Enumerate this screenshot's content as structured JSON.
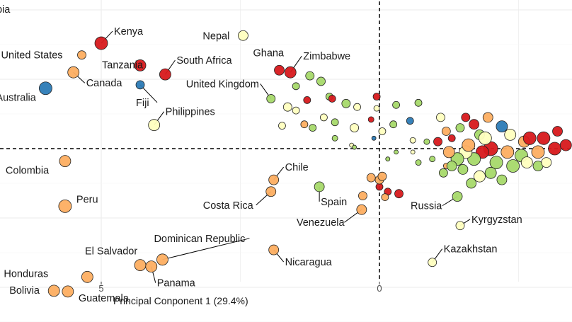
{
  "chart_data": {
    "type": "scatter",
    "xlabel": "Principal Conponent 1 (29.4%)",
    "ylabel": "",
    "x_reversed": true,
    "xlim": [
      6.75,
      -3.5
    ],
    "ylim": [
      -2.55,
      2.7
    ],
    "x_ticks": [
      5,
      0
    ],
    "grid": true,
    "reference_lines": {
      "x": 0,
      "y": 0
    },
    "cropped_label": "bia",
    "colors": {
      "red": "#d7191c",
      "orange": "#fdae61",
      "yellow": "#ffffbf",
      "green": "#a6d96a",
      "blue": "#2c7bb6"
    },
    "labeled_points": [
      {
        "label": "Kenya",
        "x": 5.0,
        "y": 1.52,
        "color": "red",
        "size": 9
      },
      {
        "label": "Tanzania",
        "x": 4.3,
        "y": 1.2,
        "color": "red",
        "size": 8
      },
      {
        "label": "South Africa",
        "x": 3.85,
        "y": 1.07,
        "color": "red",
        "size": 8
      },
      {
        "label": "United States",
        "x": 5.35,
        "y": 1.35,
        "color": "orange",
        "size": 6
      },
      {
        "label": "Canada",
        "x": 5.5,
        "y": 1.1,
        "color": "orange",
        "size": 8
      },
      {
        "label": "Fiji",
        "x": 4.3,
        "y": 0.92,
        "color": "blue",
        "size": 6
      },
      {
        "label": "Australia",
        "x": 6.0,
        "y": 0.87,
        "color": "blue",
        "size": 9
      },
      {
        "label": "Philippines",
        "x": 4.05,
        "y": 0.34,
        "color": "yellow",
        "size": 8
      },
      {
        "label": "Nepal",
        "x": 2.45,
        "y": 1.63,
        "color": "yellow",
        "size": 7
      },
      {
        "label": "Ghana",
        "x": 1.8,
        "y": 1.13,
        "color": "red",
        "size": 7
      },
      {
        "label": "Zimbabwe",
        "x": 1.6,
        "y": 1.1,
        "color": "red",
        "size": 8
      },
      {
        "label": "United Kingdom",
        "x": 1.95,
        "y": 0.72,
        "color": "green",
        "size": 6
      },
      {
        "label": "Colombia",
        "x": 5.65,
        "y": -0.18,
        "color": "orange",
        "size": 8
      },
      {
        "label": "Peru",
        "x": 5.65,
        "y": -0.83,
        "color": "orange",
        "size": 9
      },
      {
        "label": "Chile",
        "x": 1.9,
        "y": -0.45,
        "color": "orange",
        "size": 7
      },
      {
        "label": "Costa Rica",
        "x": 1.95,
        "y": -0.62,
        "color": "orange",
        "size": 7
      },
      {
        "label": "Spain",
        "x": 1.08,
        "y": -0.55,
        "color": "green",
        "size": 7
      },
      {
        "label": "Venezuela",
        "x": 0.32,
        "y": -0.88,
        "color": "orange",
        "size": 7
      },
      {
        "label": "Russia",
        "x": -1.4,
        "y": -0.69,
        "color": "green",
        "size": 7
      },
      {
        "label": "Kyrgyzstan",
        "x": -1.45,
        "y": -1.11,
        "color": "yellow",
        "size": 6
      },
      {
        "label": "Kazakhstan",
        "x": -0.95,
        "y": -1.64,
        "color": "yellow",
        "size": 6
      },
      {
        "label": "Nicaragua",
        "x": 1.9,
        "y": -1.46,
        "color": "orange",
        "size": 7
      },
      {
        "label": "Dominican Republic",
        "x": 3.9,
        "y": -1.6,
        "color": "orange",
        "size": 8
      },
      {
        "label": "El Salvador",
        "x": 4.3,
        "y": -1.68,
        "color": "orange",
        "size": 8
      },
      {
        "label": "Panama",
        "x": 4.1,
        "y": -1.7,
        "color": "orange",
        "size": 8
      },
      {
        "label": "Honduras",
        "x": 5.25,
        "y": -1.85,
        "color": "orange",
        "size": 8
      },
      {
        "label": "Bolivia",
        "x": 5.85,
        "y": -2.05,
        "color": "orange",
        "size": 8
      },
      {
        "label": "Guatemala",
        "x": 5.6,
        "y": -2.06,
        "color": "orange",
        "size": 8
      }
    ],
    "unlabeled_points": [
      {
        "x": 1.25,
        "y": 1.05,
        "color": "green",
        "size": 6
      },
      {
        "x": 1.05,
        "y": 0.97,
        "color": "green",
        "size": 6
      },
      {
        "x": 1.5,
        "y": 0.9,
        "color": "green",
        "size": 5
      },
      {
        "x": 1.3,
        "y": 0.7,
        "color": "red",
        "size": 5
      },
      {
        "x": 0.9,
        "y": 0.75,
        "color": "green",
        "size": 5
      },
      {
        "x": 0.85,
        "y": 0.72,
        "color": "red",
        "size": 5
      },
      {
        "x": 0.6,
        "y": 0.65,
        "color": "green",
        "size": 6
      },
      {
        "x": 0.4,
        "y": 0.6,
        "color": "yellow",
        "size": 5
      },
      {
        "x": 0.05,
        "y": 0.75,
        "color": "red",
        "size": 5
      },
      {
        "x": -0.3,
        "y": 0.63,
        "color": "green",
        "size": 5
      },
      {
        "x": -0.7,
        "y": 0.66,
        "color": "green",
        "size": 5
      },
      {
        "x": 1.65,
        "y": 0.6,
        "color": "yellow",
        "size": 6
      },
      {
        "x": 1.5,
        "y": 0.55,
        "color": "yellow",
        "size": 5
      },
      {
        "x": 1.75,
        "y": 0.33,
        "color": "yellow",
        "size": 5
      },
      {
        "x": 1.35,
        "y": 0.35,
        "color": "orange",
        "size": 5
      },
      {
        "x": 1.2,
        "y": 0.3,
        "color": "green",
        "size": 5
      },
      {
        "x": 1.0,
        "y": 0.45,
        "color": "yellow",
        "size": 5
      },
      {
        "x": 0.8,
        "y": 0.38,
        "color": "green",
        "size": 5
      },
      {
        "x": 0.45,
        "y": 0.3,
        "color": "yellow",
        "size": 6
      },
      {
        "x": 0.15,
        "y": 0.42,
        "color": "red",
        "size": 4
      },
      {
        "x": 0.05,
        "y": 0.58,
        "color": "yellow",
        "size": 4
      },
      {
        "x": -0.05,
        "y": 0.25,
        "color": "yellow",
        "size": 5
      },
      {
        "x": -0.25,
        "y": 0.35,
        "color": "green",
        "size": 5
      },
      {
        "x": -0.55,
        "y": 0.4,
        "color": "blue",
        "size": 5
      },
      {
        "x": 0.8,
        "y": 0.15,
        "color": "green",
        "size": 4
      },
      {
        "x": 0.5,
        "y": 0.05,
        "color": "yellow",
        "size": 3
      },
      {
        "x": 0.1,
        "y": 0.15,
        "color": "blue",
        "size": 3
      },
      {
        "x": 0.45,
        "y": 0.02,
        "color": "green",
        "size": 3
      },
      {
        "x": -0.6,
        "y": 0.12,
        "color": "yellow",
        "size": 4
      },
      {
        "x": -0.85,
        "y": 0.1,
        "color": "green",
        "size": 4
      },
      {
        "x": -0.3,
        "y": -0.05,
        "color": "green",
        "size": 3
      },
      {
        "x": -0.6,
        "y": -0.05,
        "color": "yellow",
        "size": 3
      },
      {
        "x": -0.7,
        "y": -0.2,
        "color": "green",
        "size": 4
      },
      {
        "x": -0.15,
        "y": -0.15,
        "color": "green",
        "size": 3
      },
      {
        "x": -0.95,
        "y": -0.15,
        "color": "green",
        "size": 4
      },
      {
        "x": -1.2,
        "y": -0.25,
        "color": "orange",
        "size": 4
      },
      {
        "x": 0.15,
        "y": -0.42,
        "color": "orange",
        "size": 6
      },
      {
        "x": 0.0,
        "y": -0.55,
        "color": "red",
        "size": 5
      },
      {
        "x": -0.15,
        "y": -0.62,
        "color": "red",
        "size": 5
      },
      {
        "x": -0.35,
        "y": -0.65,
        "color": "red",
        "size": 6
      },
      {
        "x": 0.3,
        "y": -0.68,
        "color": "orange",
        "size": 6
      },
      {
        "x": 0.0,
        "y": -0.45,
        "color": "orange",
        "size": 6
      },
      {
        "x": -0.1,
        "y": -0.7,
        "color": "orange",
        "size": 5
      },
      {
        "x": -0.05,
        "y": -0.4,
        "color": "orange",
        "size": 6
      },
      {
        "x": -1.1,
        "y": 0.45,
        "color": "yellow",
        "size": 6
      },
      {
        "x": -1.2,
        "y": 0.25,
        "color": "orange",
        "size": 6
      },
      {
        "x": -1.3,
        "y": 0.15,
        "color": "red",
        "size": 5
      },
      {
        "x": -1.45,
        "y": 0.3,
        "color": "green",
        "size": 6
      },
      {
        "x": -1.55,
        "y": 0.45,
        "color": "red",
        "size": 6
      },
      {
        "x": -1.7,
        "y": 0.35,
        "color": "red",
        "size": 7
      },
      {
        "x": -1.8,
        "y": 0.2,
        "color": "green",
        "size": 7
      },
      {
        "x": -1.95,
        "y": 0.45,
        "color": "orange",
        "size": 7
      },
      {
        "x": -2.2,
        "y": 0.32,
        "color": "blue",
        "size": 8
      },
      {
        "x": -2.35,
        "y": 0.2,
        "color": "yellow",
        "size": 8
      },
      {
        "x": -2.6,
        "y": 0.1,
        "color": "orange",
        "size": 8
      },
      {
        "x": -2.7,
        "y": 0.15,
        "color": "red",
        "size": 9
      },
      {
        "x": -2.95,
        "y": 0.15,
        "color": "red",
        "size": 9
      },
      {
        "x": -3.15,
        "y": 0.0,
        "color": "red",
        "size": 9
      },
      {
        "x": -2.85,
        "y": -0.05,
        "color": "orange",
        "size": 9
      },
      {
        "x": -2.55,
        "y": -0.1,
        "color": "green",
        "size": 9
      },
      {
        "x": -2.3,
        "y": -0.05,
        "color": "orange",
        "size": 9
      },
      {
        "x": -2.0,
        "y": 0.0,
        "color": "red",
        "size": 10
      },
      {
        "x": -1.85,
        "y": -0.05,
        "color": "red",
        "size": 9
      },
      {
        "x": -1.7,
        "y": -0.15,
        "color": "green",
        "size": 9
      },
      {
        "x": -1.55,
        "y": -0.05,
        "color": "yellow",
        "size": 9
      },
      {
        "x": -1.4,
        "y": -0.15,
        "color": "green",
        "size": 9
      },
      {
        "x": -1.25,
        "y": -0.05,
        "color": "orange",
        "size": 8
      },
      {
        "x": -1.6,
        "y": 0.05,
        "color": "orange",
        "size": 9
      },
      {
        "x": -1.9,
        "y": 0.15,
        "color": "yellow",
        "size": 9
      },
      {
        "x": -2.1,
        "y": -0.2,
        "color": "green",
        "size": 9
      },
      {
        "x": -2.4,
        "y": -0.25,
        "color": "green",
        "size": 9
      },
      {
        "x": -2.65,
        "y": -0.2,
        "color": "yellow",
        "size": 8
      },
      {
        "x": -2.0,
        "y": -0.35,
        "color": "green",
        "size": 8
      },
      {
        "x": -1.8,
        "y": -0.4,
        "color": "yellow",
        "size": 8
      },
      {
        "x": -1.5,
        "y": -0.3,
        "color": "green",
        "size": 7
      },
      {
        "x": -1.3,
        "y": -0.25,
        "color": "green",
        "size": 7
      },
      {
        "x": -2.2,
        "y": -0.45,
        "color": "green",
        "size": 7
      },
      {
        "x": -1.65,
        "y": -0.5,
        "color": "green",
        "size": 7
      },
      {
        "x": -2.85,
        "y": -0.25,
        "color": "green",
        "size": 7
      },
      {
        "x": -3.0,
        "y": -0.2,
        "color": "yellow",
        "size": 7
      },
      {
        "x": -1.15,
        "y": -0.35,
        "color": "green",
        "size": 6
      },
      {
        "x": -1.05,
        "y": 0.1,
        "color": "red",
        "size": 6
      },
      {
        "x": -3.35,
        "y": 0.05,
        "color": "red",
        "size": 8
      },
      {
        "x": -3.2,
        "y": 0.25,
        "color": "red",
        "size": 7
      }
    ]
  }
}
